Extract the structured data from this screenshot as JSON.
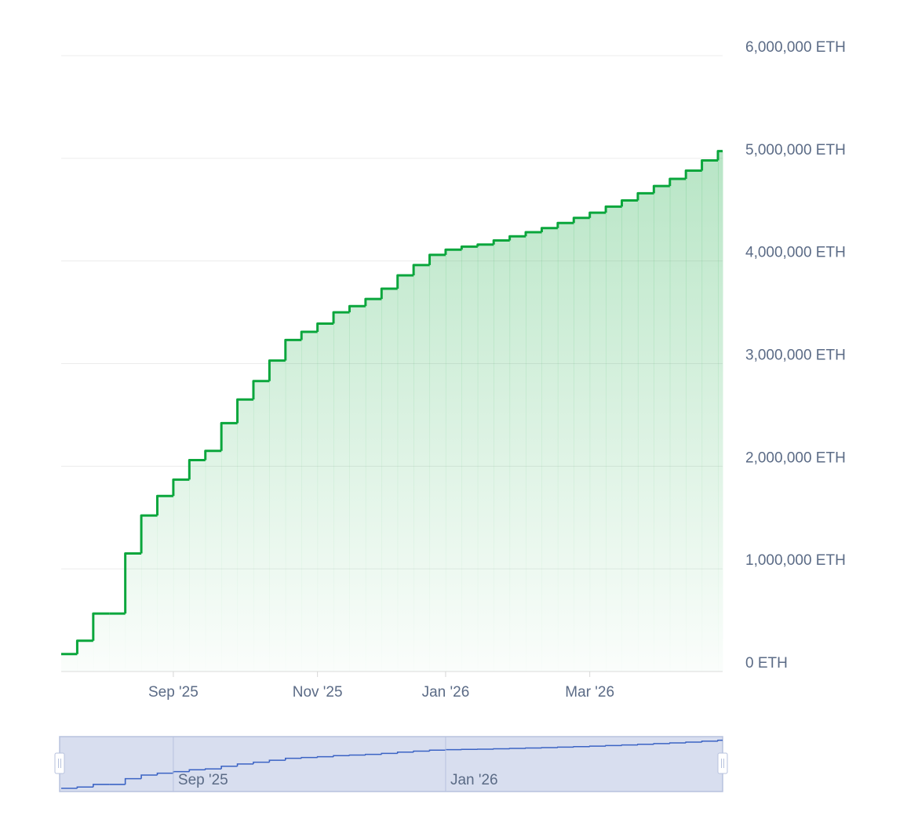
{
  "chart_data": {
    "type": "step-area",
    "categories": [
      null,
      null,
      null,
      null,
      null,
      null,
      null,
      "Sep '25",
      null,
      null,
      null,
      null,
      null,
      null,
      null,
      null,
      "Nov '25",
      null,
      null,
      null,
      null,
      null,
      null,
      null,
      "Jan '26",
      null,
      null,
      null,
      null,
      null,
      null,
      null,
      null,
      "Mar '26",
      null,
      null,
      null,
      null,
      null,
      null,
      null,
      null
    ],
    "series": [
      {
        "color": "#0aa63c",
        "values": [
          170000,
          300000,
          565000,
          565000,
          1150000,
          1520000,
          1710000,
          1870000,
          2060000,
          2150000,
          2420000,
          2650000,
          2830000,
          3030000,
          3230000,
          3310000,
          3390000,
          3500000,
          3560000,
          3630000,
          3730000,
          3860000,
          3960000,
          4060000,
          4110000,
          4140000,
          4160000,
          4200000,
          4240000,
          4280000,
          4320000,
          4370000,
          4420000,
          4470000,
          4530000,
          4590000,
          4660000,
          4730000,
          4800000,
          4880000,
          4980000,
          5070000
        ]
      }
    ],
    "navigator_color": "#3b63c4",
    "ylim": [
      0,
      6000000
    ],
    "yticks": [
      {
        "value": 0,
        "label": "0 ETH"
      },
      {
        "value": 1000000,
        "label": "1,000,000 ETH"
      },
      {
        "value": 2000000,
        "label": "2,000,000 ETH"
      },
      {
        "value": 3000000,
        "label": "3,000,000 ETH"
      },
      {
        "value": 4000000,
        "label": "4,000,000 ETH"
      },
      {
        "value": 5000000,
        "label": "5,000,000 ETH"
      },
      {
        "value": 6000000,
        "label": "6,000,000 ETH"
      }
    ],
    "grid": true
  }
}
